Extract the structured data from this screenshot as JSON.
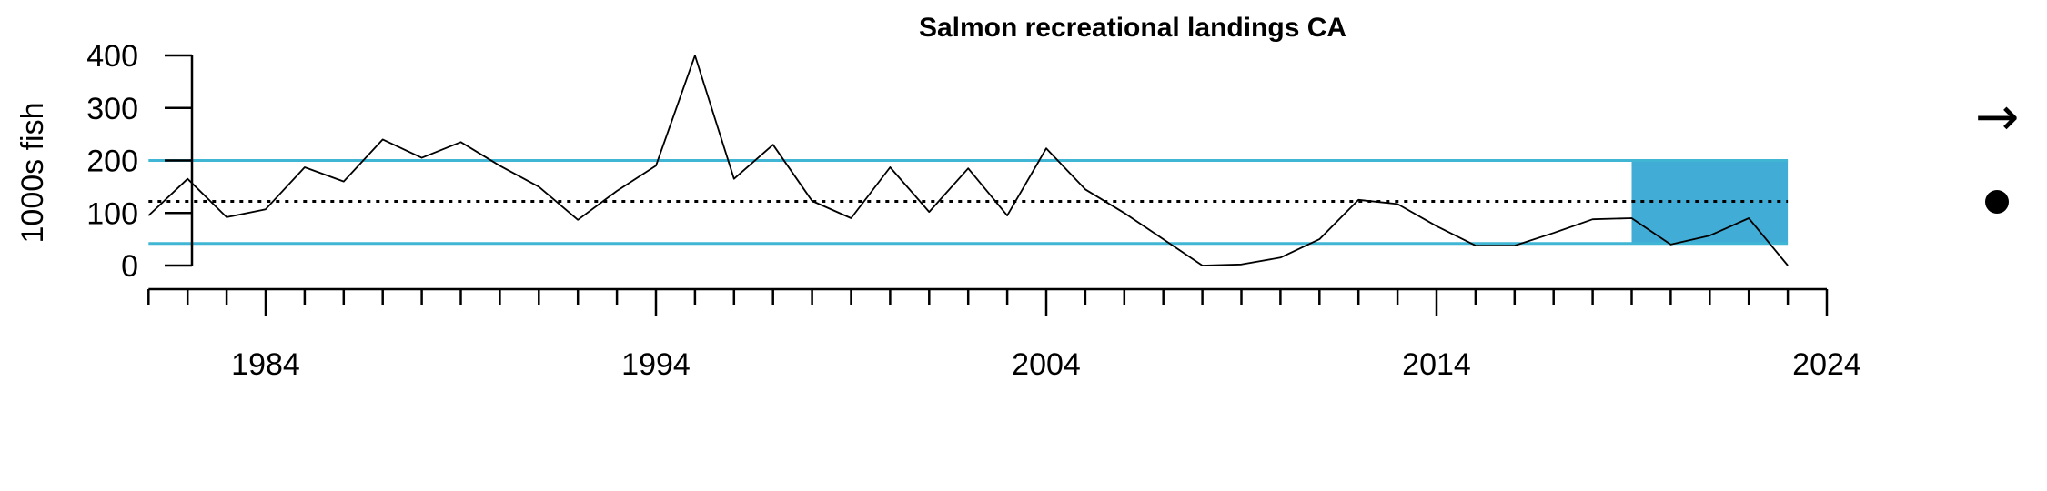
{
  "chart_data": {
    "type": "line",
    "title": "Salmon recreational landings CA",
    "ylabel": "1000s fish",
    "xlabel": "",
    "xlim": [
      1981,
      2024
    ],
    "ylim": [
      0,
      400
    ],
    "x_ticks": [
      1984,
      1994,
      2004,
      2014,
      2024
    ],
    "y_ticks": [
      0,
      100,
      200,
      300,
      400
    ],
    "x_minor_tick_interval": 1,
    "series": [
      {
        "x": [
          1981,
          1982,
          1983,
          1984,
          1985,
          1986,
          1987,
          1988,
          1989,
          1990,
          1991,
          1992,
          1993,
          1994,
          1995,
          1996,
          1997,
          1998,
          1999,
          2000,
          2001,
          2002,
          2003,
          2004,
          2005,
          2006,
          2007,
          2008,
          2009,
          2010,
          2011,
          2012,
          2013,
          2014,
          2015,
          2016,
          2017,
          2018,
          2019,
          2020,
          2021,
          2022,
          2023
        ],
        "values": [
          95,
          165,
          92,
          107,
          187,
          160,
          240,
          205,
          235,
          190,
          150,
          87,
          142,
          190,
          400,
          165,
          230,
          123,
          90,
          187,
          102,
          185,
          95,
          223,
          145,
          100,
          50,
          0,
          2,
          15,
          50,
          125,
          117,
          75,
          38,
          38,
          62,
          88,
          90,
          40,
          57,
          90,
          0
        ]
      }
    ],
    "reference_lines": {
      "mean": 122,
      "upper_sd": 200,
      "lower_sd": 42
    },
    "highlight_region": {
      "x_start": 2019,
      "x_end": 2023,
      "y_start": 42,
      "y_end": 200
    },
    "trend_symbols": {
      "trend": "→",
      "mean_status": "●"
    },
    "colors": {
      "line": "#000000",
      "sd_lines": "#41b6d4",
      "highlight": "#41acd6",
      "axis": "#000000"
    },
    "grid": false,
    "legend": "none"
  }
}
